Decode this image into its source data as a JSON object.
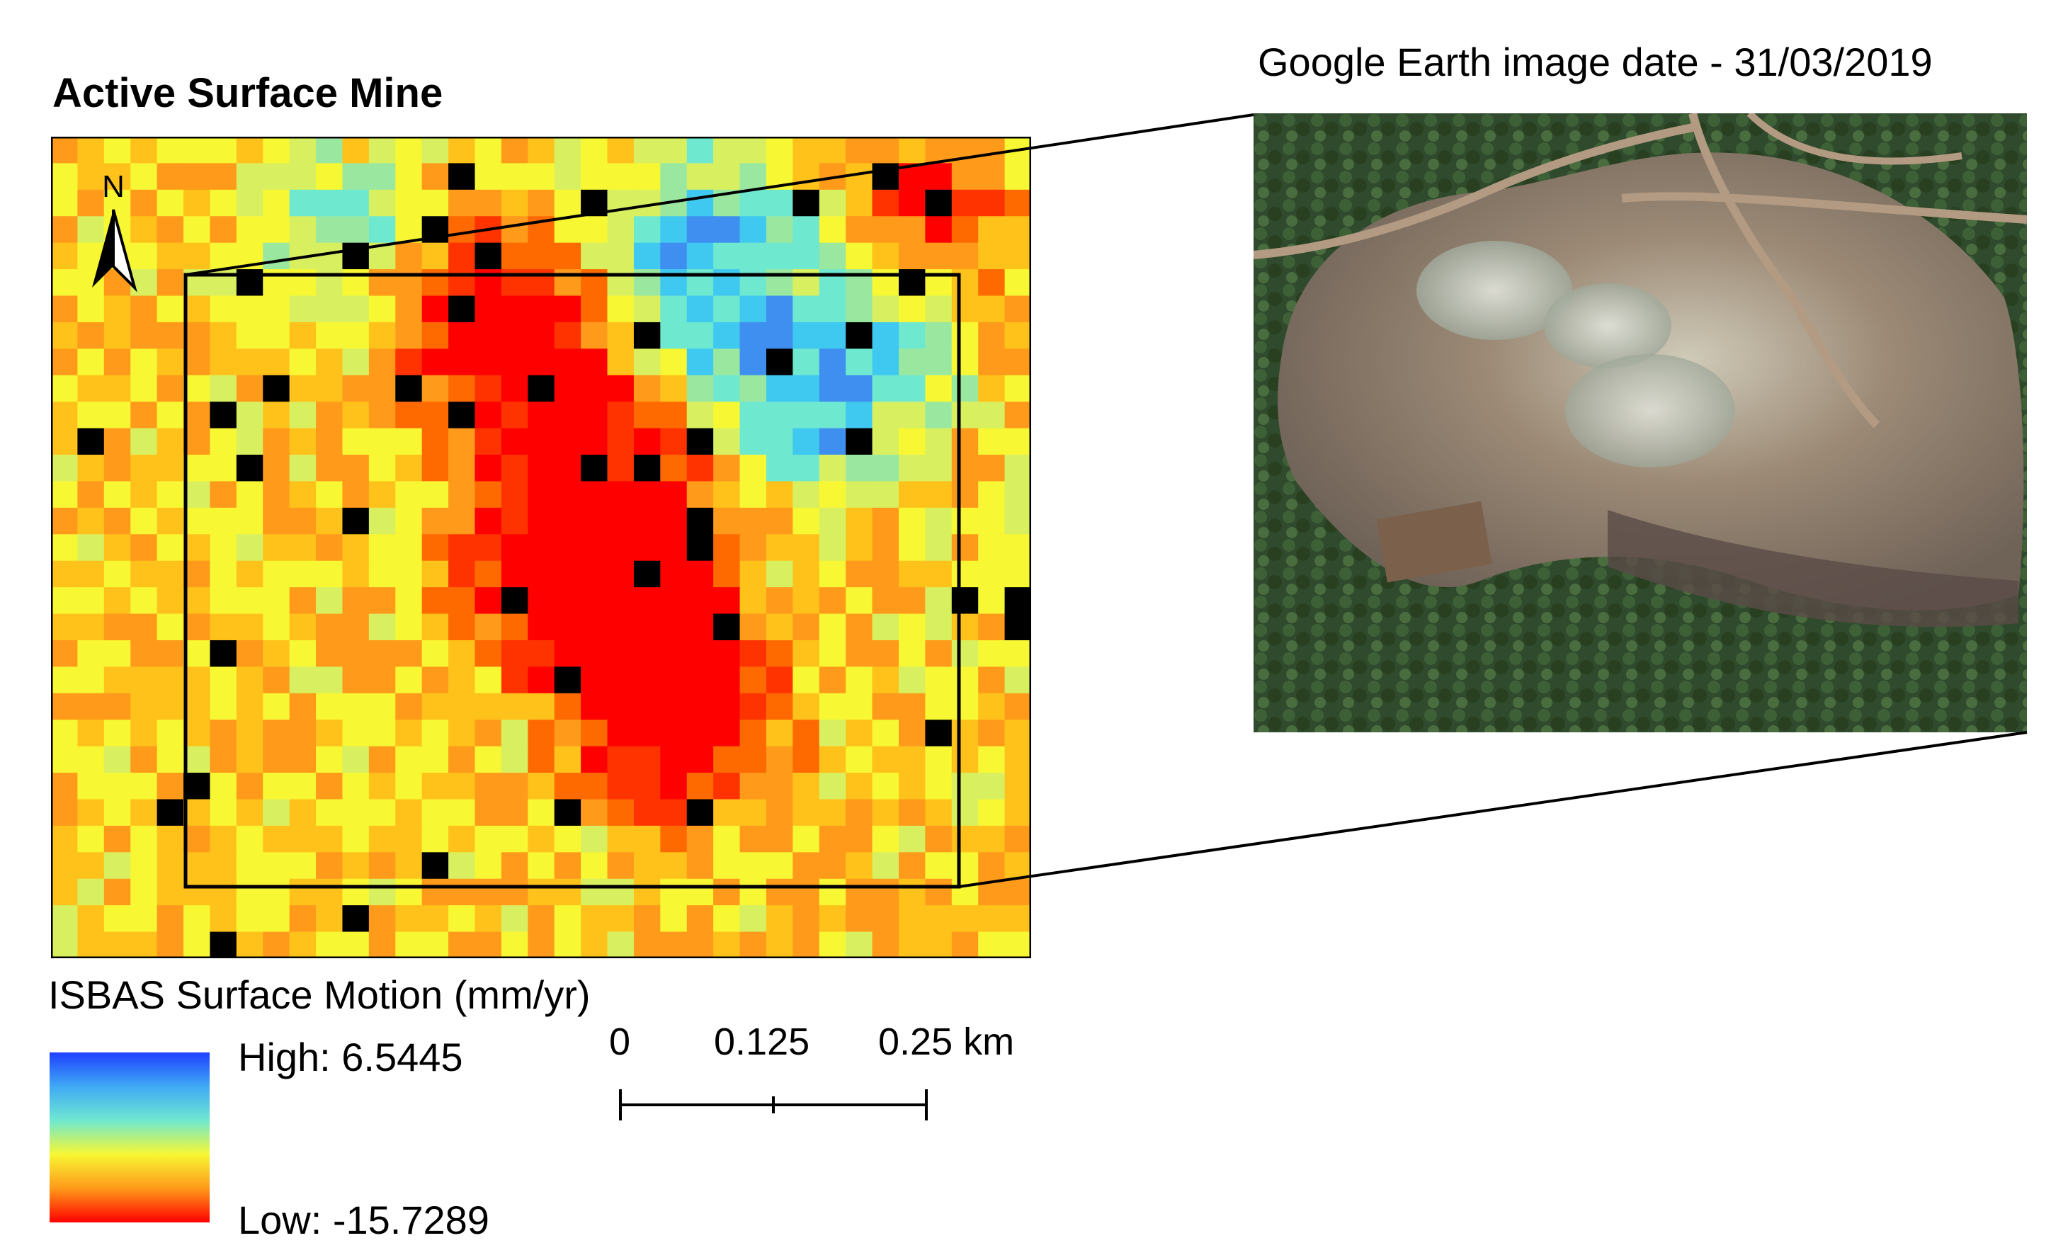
{
  "map_panel": {
    "title": "Active Surface Mine",
    "north_label": "N",
    "colors": {
      "high": "#1E40FF",
      "mid": "#66E0D8",
      "yellow": "#FFFF33",
      "low": "#FF0000",
      "nodata": "#000000",
      "frame": "#000000"
    }
  },
  "photo_panel": {
    "title": "Google Earth image date - 31/03/2019"
  },
  "legend": {
    "title": "ISBAS Surface Motion (mm/yr)",
    "high_label": "High: 6.5445",
    "low_label": "Low: -15.7289"
  },
  "scale_bar": {
    "labels": [
      "0",
      "0.125",
      "0.25 km"
    ]
  }
}
